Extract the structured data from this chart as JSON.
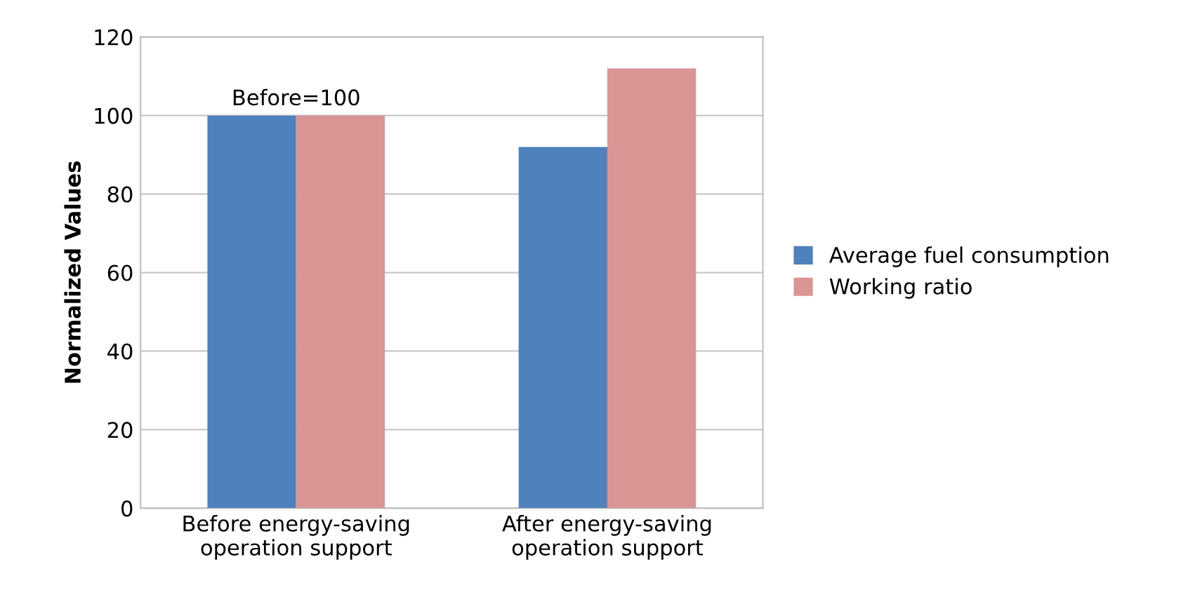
{
  "chart_data": {
    "type": "bar",
    "ylabel": "Normalized Values",
    "categories": [
      "Before energy-saving\noperation support",
      "After energy-saving\noperation support"
    ],
    "series": [
      {
        "name": "Average fuel consumption",
        "color": "#4f81bd",
        "values": [
          100,
          92
        ]
      },
      {
        "name": "Working ratio",
        "color": "#d99594",
        "values": [
          100,
          112
        ]
      }
    ],
    "ylim": [
      0,
      120
    ],
    "yticks": [
      0,
      20,
      40,
      60,
      80,
      100,
      120
    ],
    "grid": "y",
    "legend": "right",
    "annotations": [
      {
        "text": "Before=100",
        "x": "Before energy-saving\noperation support",
        "y": 100
      }
    ]
  }
}
